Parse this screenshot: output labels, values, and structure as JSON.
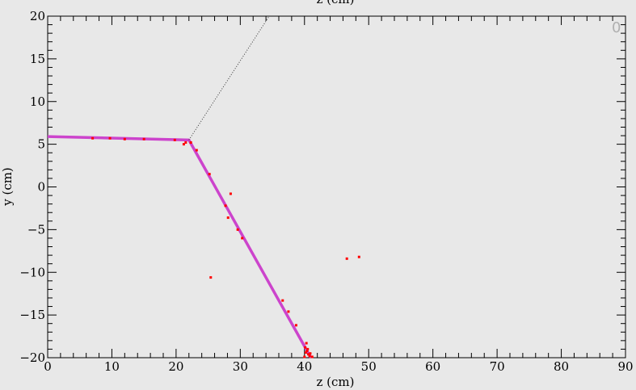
{
  "chart_data": {
    "type": "scatter",
    "title": "",
    "top_axis_label": "z (cm)",
    "xlabel": "z (cm)",
    "ylabel": "y (cm)",
    "xlim": [
      0,
      90
    ],
    "ylim": [
      -20,
      20
    ],
    "x_ticks": [
      0,
      10,
      20,
      30,
      40,
      50,
      60,
      70,
      80,
      90
    ],
    "y_ticks": [
      -20,
      -15,
      -10,
      -5,
      0,
      5,
      10,
      15,
      20
    ],
    "x_tick_labels": [
      "0",
      "10",
      "20",
      "30",
      "40",
      "50",
      "60",
      "70",
      "80",
      "90"
    ],
    "y_tick_labels": [
      "−20",
      "−15",
      "−10",
      "−5",
      "0",
      "5",
      "10",
      "15",
      "20"
    ],
    "grid": false,
    "corner_label": "0",
    "series": [
      {
        "kind": "track",
        "color": "#cc44cc",
        "points": [
          [
            0,
            5.9
          ],
          [
            22.0,
            5.5
          ],
          [
            41.0,
            -20
          ]
        ]
      },
      {
        "kind": "dotted-line",
        "color": "#333333",
        "points": [
          [
            22.0,
            5.5
          ],
          [
            34.5,
            20
          ]
        ]
      },
      {
        "kind": "hits",
        "color": "#ff0000",
        "points": [
          [
            7,
            5.7
          ],
          [
            9.7,
            5.7
          ],
          [
            12,
            5.6
          ],
          [
            15,
            5.6
          ],
          [
            19.8,
            5.5
          ],
          [
            21.2,
            5.0
          ],
          [
            21.5,
            5.2
          ],
          [
            22.3,
            5.2
          ],
          [
            23.2,
            4.3
          ],
          [
            25.2,
            1.5
          ],
          [
            28.5,
            -0.8
          ],
          [
            27.7,
            -2.2
          ],
          [
            28.1,
            -3.6
          ],
          [
            29.6,
            -5.0
          ],
          [
            30.3,
            -6.0
          ],
          [
            25.4,
            -10.6
          ],
          [
            36.6,
            -13.3
          ],
          [
            37.5,
            -14.6
          ],
          [
            38.7,
            -16.2
          ],
          [
            40.3,
            -18.3
          ],
          [
            40.1,
            -18.8
          ],
          [
            40.5,
            -19.0
          ],
          [
            40.2,
            -19.4
          ],
          [
            40.6,
            -19.6
          ],
          [
            40.0,
            -19.9
          ],
          [
            40.8,
            -19.8
          ],
          [
            41.2,
            -19.9
          ],
          [
            40.4,
            -19.2
          ],
          [
            40.9,
            -19.5
          ],
          [
            46.6,
            -8.4
          ],
          [
            48.5,
            -8.2
          ]
        ]
      }
    ]
  }
}
